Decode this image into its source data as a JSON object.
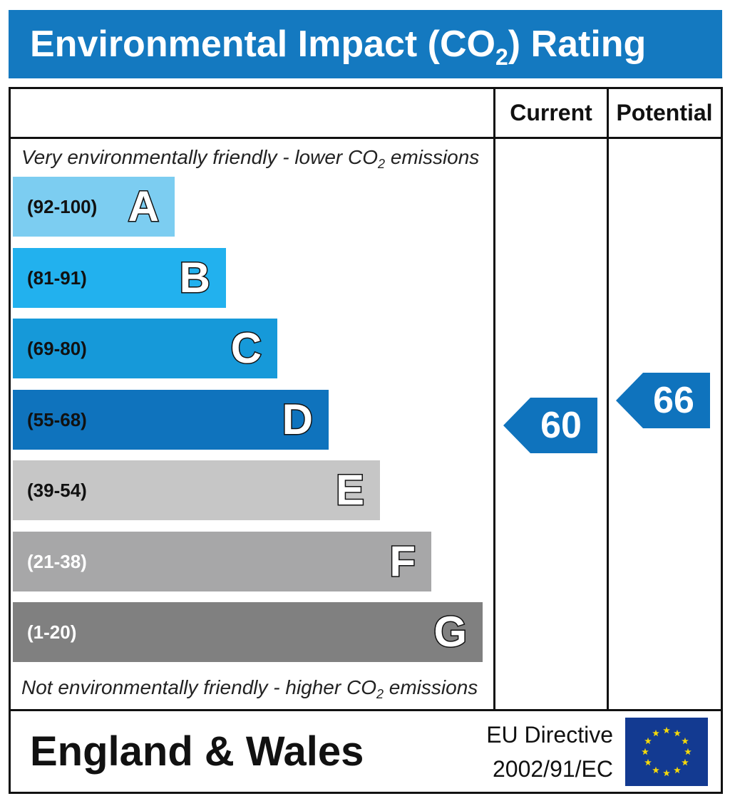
{
  "title": {
    "main": "Environmental Impact (CO",
    "sub": "2",
    "end": ") Rating"
  },
  "columns": {
    "current": "Current",
    "potential": "Potential"
  },
  "notes": {
    "top": {
      "before": "Very environmentally friendly - lower CO",
      "sub": "2",
      "after": " emissions"
    },
    "bottom": {
      "before": "Not environmentally friendly - higher CO",
      "sub": "2",
      "after": " emissions"
    }
  },
  "chart_data": {
    "type": "bar",
    "categories": [
      "A",
      "B",
      "C",
      "D",
      "E",
      "F",
      "G"
    ],
    "bands": [
      {
        "letter": "A",
        "range": "(92-100)",
        "min": 92,
        "max": 100,
        "color": "#7ccdf1",
        "text_color": "#111111"
      },
      {
        "letter": "B",
        "range": "(81-91)",
        "min": 81,
        "max": 91,
        "color": "#22b1ee",
        "text_color": "#111111"
      },
      {
        "letter": "C",
        "range": "(69-80)",
        "min": 69,
        "max": 80,
        "color": "#1699d9",
        "text_color": "#111111"
      },
      {
        "letter": "D",
        "range": "(55-68)",
        "min": 55,
        "max": 68,
        "color": "#0f73bd",
        "text_color": "#111111"
      },
      {
        "letter": "E",
        "range": "(39-54)",
        "min": 39,
        "max": 54,
        "color": "#c6c6c6",
        "text_color": "#111111"
      },
      {
        "letter": "F",
        "range": "(21-38)",
        "min": 21,
        "max": 38,
        "color": "#a7a7a8",
        "text_color": "#ffffff"
      },
      {
        "letter": "G",
        "range": "(1-20)",
        "min": 1,
        "max": 20,
        "color": "#808080",
        "text_color": "#ffffff"
      }
    ],
    "series": [
      {
        "name": "Current",
        "value": 60
      },
      {
        "name": "Potential",
        "value": 66
      }
    ],
    "pointer_color": "#0f73bd"
  },
  "footer": {
    "region": "England & Wales",
    "directive_line1": "EU Directive",
    "directive_line2": "2002/91/EC"
  },
  "flag": {
    "background": "#133a91",
    "star_color": "#f5d90a",
    "icon": "eu-flag-icon"
  }
}
